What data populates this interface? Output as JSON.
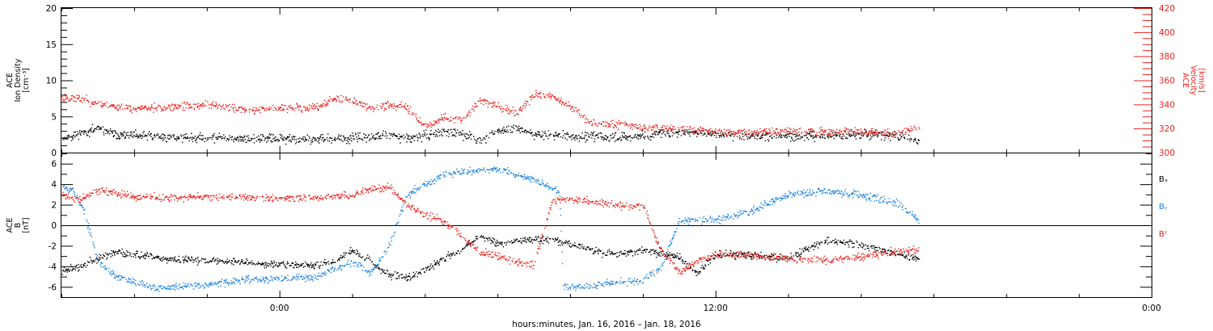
{
  "figure": {
    "xlabel": "hours:minutes, Jan. 16, 2016 – Jan. 18, 2016",
    "x_tick_labels": [
      "0:00",
      "12:00",
      "0:00"
    ]
  },
  "colors": {
    "black": "#000000",
    "blue": "#1b82dc",
    "red": "#e8211c"
  },
  "chart_data": [
    {
      "type": "scatter",
      "panel": "top",
      "x_unit": "hours since Jan. 16, 2016 00:00",
      "xlim": [
        18,
        48
      ],
      "x_ticks": [
        24,
        36,
        48
      ],
      "left_axis": {
        "label_lines": [
          "ACE",
          "Ion Density",
          "[cm⁻³]"
        ],
        "ylim": [
          0,
          20
        ],
        "ticks": [
          0,
          5,
          10,
          15,
          20
        ]
      },
      "right_axis": {
        "label_lines": [
          "ACE",
          "Velocity",
          "[km/s]"
        ],
        "ylim": [
          300,
          420
        ],
        "ticks": [
          300,
          320,
          340,
          360,
          380,
          400,
          420
        ],
        "color": "#e8211c"
      },
      "series": [
        {
          "axis": "left",
          "color": "#000000",
          "x": [
            18.0,
            18.5,
            19.0,
            19.5,
            20.0,
            21.0,
            22.0,
            23.0,
            24.0,
            25.0,
            26.0,
            27.0,
            27.5,
            28.0,
            28.5,
            29.0,
            29.5,
            30.0,
            30.5,
            31.0,
            31.5,
            32.0,
            33.0,
            34.0,
            35.0,
            36.0,
            37.0,
            38.0,
            39.0,
            40.0,
            41.0,
            41.6
          ],
          "y": [
            2.0,
            2.8,
            3.3,
            2.6,
            2.4,
            2.2,
            2.1,
            2.0,
            2.0,
            1.9,
            2.0,
            2.5,
            2.0,
            2.4,
            3.0,
            2.5,
            1.8,
            3.0,
            3.5,
            2.6,
            2.5,
            2.3,
            2.2,
            2.4,
            2.9,
            2.6,
            2.4,
            2.3,
            2.3,
            2.6,
            2.3,
            1.6
          ]
        },
        {
          "axis": "right",
          "color": "#e8211c",
          "x": [
            18.0,
            18.5,
            19.0,
            20.0,
            21.0,
            22.0,
            23.0,
            24.0,
            25.0,
            25.5,
            26.0,
            26.5,
            27.0,
            27.5,
            28.0,
            28.5,
            29.0,
            29.5,
            30.0,
            30.5,
            31.0,
            31.5,
            32.0,
            32.5,
            33.0,
            33.5,
            34.0,
            35.0,
            36.0,
            37.0,
            38.0,
            39.0,
            40.0,
            41.0,
            41.6
          ],
          "y": [
            346,
            345,
            341,
            337,
            338,
            340,
            336,
            337,
            338,
            345,
            344,
            337,
            340,
            338,
            322,
            330,
            327,
            344,
            339,
            333,
            348,
            347,
            339,
            326,
            324,
            324,
            321,
            320,
            318,
            317,
            319,
            318,
            318,
            316,
            322
          ]
        }
      ]
    },
    {
      "type": "scatter",
      "panel": "bottom",
      "x_unit": "hours since Jan. 16, 2016 00:00",
      "xlim": [
        18,
        48
      ],
      "x_ticks": [
        24,
        36,
        48
      ],
      "left_axis": {
        "label_lines": [
          "ACE",
          "B",
          "[nT]"
        ],
        "ylim": [
          -7,
          7
        ],
        "ticks": [
          -6,
          -4,
          -2,
          0,
          2,
          4,
          6
        ]
      },
      "zero_line": 0,
      "series": [
        {
          "name": "Bₓ",
          "color": "#000000",
          "x": [
            18.0,
            18.5,
            19.0,
            19.5,
            20.0,
            21.0,
            22.0,
            23.0,
            24.0,
            25.0,
            25.5,
            26.0,
            26.5,
            27.0,
            27.5,
            28.0,
            28.5,
            29.0,
            29.5,
            30.0,
            30.5,
            31.0,
            31.5,
            32.0,
            32.5,
            33.0,
            33.5,
            34.0,
            34.5,
            35.0,
            35.5,
            36.0,
            37.0,
            38.0,
            39.0,
            40.0,
            41.0,
            41.6
          ],
          "y": [
            -4.3,
            -4.0,
            -3.2,
            -2.6,
            -2.8,
            -3.3,
            -3.4,
            -3.5,
            -3.8,
            -3.9,
            -3.4,
            -2.4,
            -3.5,
            -4.8,
            -5.0,
            -4.4,
            -3.2,
            -2.3,
            -1.0,
            -1.8,
            -1.5,
            -1.3,
            -1.4,
            -1.8,
            -2.3,
            -2.7,
            -2.6,
            -2.4,
            -2.7,
            -3.2,
            -4.6,
            -2.8,
            -2.9,
            -3.2,
            -1.4,
            -1.9,
            -2.8,
            -3.2
          ]
        },
        {
          "name": "Bᵧ",
          "color": "#1b82dc",
          "x": [
            18.0,
            18.3,
            18.6,
            19.0,
            19.5,
            20.0,
            20.5,
            21.0,
            22.0,
            23.0,
            24.0,
            25.0,
            25.5,
            26.0,
            26.5,
            27.0,
            27.5,
            28.0,
            28.5,
            29.0,
            30.0,
            31.0,
            31.7,
            31.8,
            32.5,
            33.0,
            34.0,
            34.5,
            35.0,
            35.5,
            36.0,
            37.0,
            38.0,
            39.0,
            40.0,
            41.0,
            41.6
          ],
          "y": [
            4.0,
            3.5,
            1.5,
            -3.5,
            -5.0,
            -5.4,
            -6.0,
            -6.0,
            -5.7,
            -5.3,
            -5.2,
            -5.0,
            -4.2,
            -3.5,
            -4.6,
            -2.0,
            3.0,
            4.0,
            5.0,
            5.3,
            5.5,
            4.5,
            3.3,
            -6.0,
            -6.0,
            -5.6,
            -5.3,
            -4.0,
            0.5,
            0.6,
            0.5,
            1.5,
            3.0,
            3.4,
            3.0,
            2.2,
            0.5
          ]
        },
        {
          "name": "Bᶻ",
          "color": "#e8211c",
          "x": [
            18.0,
            18.5,
            19.0,
            20.0,
            21.0,
            22.0,
            23.0,
            24.0,
            25.0,
            26.0,
            26.5,
            27.0,
            27.5,
            28.0,
            28.5,
            29.0,
            29.5,
            30.0,
            30.5,
            31.0,
            31.5,
            32.0,
            32.5,
            33.0,
            33.5,
            34.0,
            34.5,
            35.0,
            35.5,
            36.0,
            37.0,
            38.0,
            39.0,
            40.0,
            41.0,
            41.6
          ],
          "y": [
            3.0,
            2.5,
            3.5,
            2.8,
            2.7,
            2.8,
            2.9,
            2.6,
            2.7,
            3.0,
            3.5,
            3.8,
            2.0,
            1.0,
            0.5,
            -1.0,
            -2.5,
            -3.0,
            -3.5,
            -3.8,
            2.5,
            2.6,
            2.4,
            2.2,
            1.9,
            1.9,
            -2.5,
            -4.5,
            -3.5,
            -2.8,
            -2.9,
            -3.2,
            -3.4,
            -3.0,
            -2.5,
            -2.3
          ]
        }
      ]
    }
  ]
}
